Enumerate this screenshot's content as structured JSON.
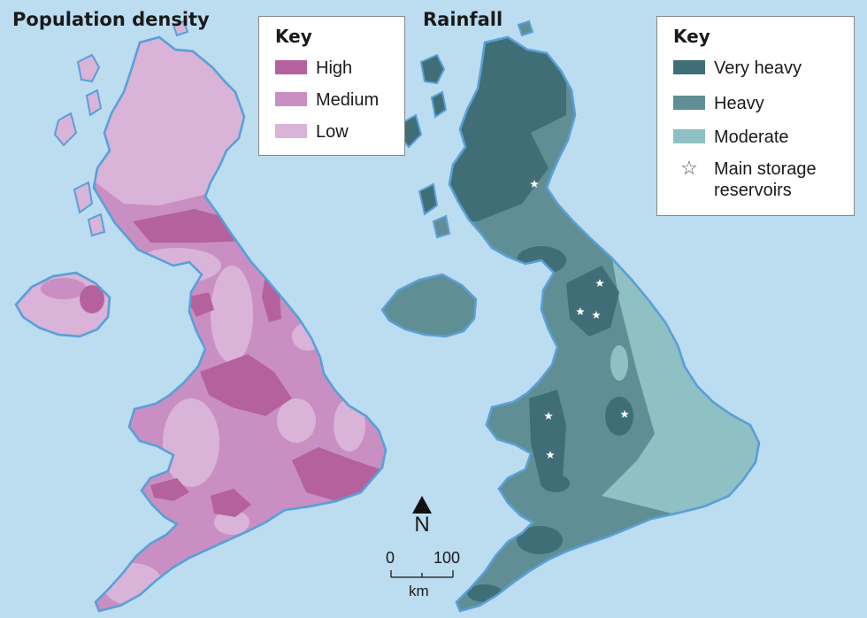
{
  "population_map": {
    "title": "Population density",
    "key": {
      "heading": "Key",
      "items": [
        {
          "label": "High",
          "color": "#b5619e"
        },
        {
          "label": "Medium",
          "color": "#ca8fc2"
        },
        {
          "label": "Low",
          "color": "#d9b3d8"
        }
      ]
    }
  },
  "rainfall_map": {
    "title": "Rainfall",
    "key": {
      "heading": "Key",
      "items": [
        {
          "label": "Very heavy",
          "color": "#3f6e76"
        },
        {
          "label": "Heavy",
          "color": "#5f8f95"
        },
        {
          "label": "Moderate",
          "color": "#8fc0c4"
        }
      ],
      "reservoir": {
        "label_line1": "Main storage",
        "label_line2": "reservoirs",
        "icon": "star-outline-icon"
      }
    }
  },
  "north_arrow": {
    "letter": "N"
  },
  "scale_bar": {
    "start": "0",
    "end": "100",
    "unit": "km"
  },
  "colors": {
    "sea": "#bcdcf0",
    "coast": "#5aa0d6"
  }
}
